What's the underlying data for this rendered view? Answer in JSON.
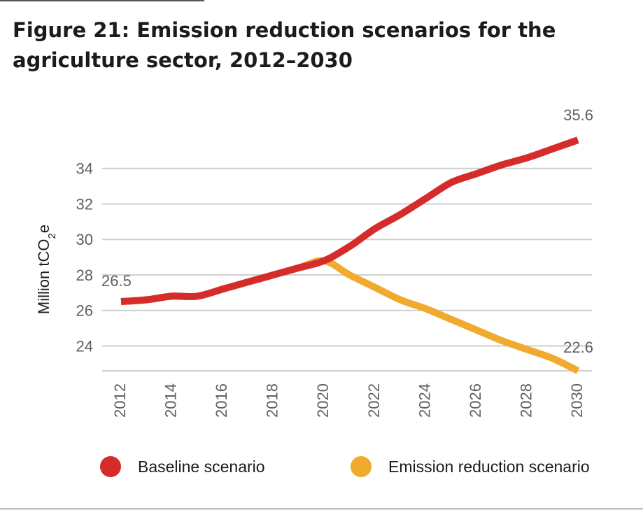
{
  "title": "Figure 21: Emission reduction scenarios for the agriculture sector, 2012–2030",
  "chart_data": {
    "type": "line",
    "ylabel": "Million tCO2e",
    "ylabel_main": "Million tCO",
    "ylabel_sub": "2",
    "ylabel_tail": "e",
    "ylim": [
      22.6,
      36
    ],
    "yticks": [
      24,
      26,
      28,
      30,
      32,
      34
    ],
    "x": [
      2012,
      2013,
      2014,
      2015,
      2016,
      2017,
      2018,
      2019,
      2020,
      2021,
      2022,
      2023,
      2024,
      2025,
      2026,
      2027,
      2028,
      2029,
      2030
    ],
    "xticks": [
      2012,
      2014,
      2016,
      2018,
      2020,
      2022,
      2024,
      2026,
      2028,
      2030
    ],
    "grid": true,
    "legend_position": "bottom",
    "series": [
      {
        "name": "Baseline scenario",
        "color": "#d62b2b",
        "values": [
          26.5,
          26.6,
          26.8,
          26.8,
          27.2,
          27.6,
          28.0,
          28.4,
          28.8,
          29.6,
          30.6,
          31.4,
          32.3,
          33.2,
          33.7,
          34.2,
          34.6,
          35.1,
          35.6
        ]
      },
      {
        "name": "Emission reduction scenario",
        "color": "#f0aa2e",
        "values": [
          26.5,
          26.6,
          26.8,
          26.8,
          27.2,
          27.6,
          28.0,
          28.4,
          28.8,
          28.0,
          27.3,
          26.6,
          26.1,
          25.5,
          24.9,
          24.3,
          23.8,
          23.3,
          22.6
        ]
      }
    ],
    "annotations": [
      {
        "text": "26.5",
        "x": 2012,
        "y": 26.5,
        "anchor": "start",
        "offset": "above-right"
      },
      {
        "text": "35.6",
        "x": 2030,
        "y": 35.6,
        "anchor": "end",
        "offset": "above"
      },
      {
        "text": "22.6",
        "x": 2030,
        "y": 22.6,
        "anchor": "end",
        "offset": "above"
      }
    ]
  },
  "legend": {
    "baseline_label": "Baseline scenario",
    "reduction_label": "Emission reduction scenario"
  }
}
